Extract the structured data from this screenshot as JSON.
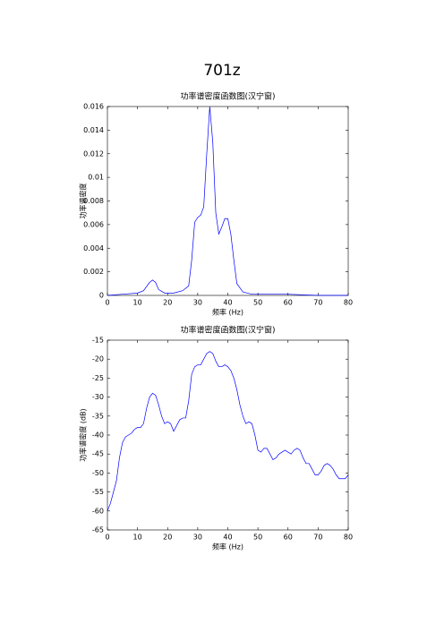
{
  "heading": "701z",
  "chart_data": [
    {
      "type": "line",
      "title": "功率谱密度函数图(汉宁窗)",
      "xlabel": "频率 (Hz)",
      "ylabel": "功率谱密度",
      "xlim": [
        0,
        80
      ],
      "xticks": [
        0,
        10,
        20,
        30,
        40,
        50,
        60,
        70,
        80
      ],
      "ylim": [
        0,
        0.016
      ],
      "yticks": [
        0,
        0.002,
        0.004,
        0.006,
        0.008,
        0.01,
        0.012,
        0.014,
        0.016
      ],
      "x": [
        0,
        5,
        10,
        12,
        14,
        15,
        16,
        17,
        19,
        22,
        25,
        27,
        28,
        29,
        30,
        31,
        32,
        33,
        34,
        35,
        36,
        37,
        38,
        39,
        40,
        41,
        42,
        43,
        45,
        48,
        50,
        55,
        60,
        70,
        80
      ],
      "series": [
        {
          "color": "#0000ff",
          "values": [
            0,
            0.0001,
            0.0002,
            0.0004,
            0.0011,
            0.0013,
            0.0011,
            0.0005,
            0.0002,
            0.0002,
            0.0004,
            0.0008,
            0.003,
            0.0062,
            0.0066,
            0.0068,
            0.0075,
            0.012,
            0.016,
            0.013,
            0.007,
            0.0052,
            0.0058,
            0.0065,
            0.0065,
            0.0052,
            0.003,
            0.001,
            0.0003,
            0.0001,
            0.0001,
            0.0001,
            0.0001,
            0,
            0
          ]
        }
      ]
    },
    {
      "type": "line",
      "title": "功率谱密度函数图(汉宁窗)",
      "xlabel": "频率 (Hz)",
      "ylabel": "功率谱密度 (dB)",
      "xlim": [
        0,
        80
      ],
      "xticks": [
        0,
        10,
        20,
        30,
        40,
        50,
        60,
        70,
        80
      ],
      "ylim": [
        -65,
        -15
      ],
      "yticks": [
        -65,
        -60,
        -55,
        -50,
        -45,
        -40,
        -35,
        -30,
        -25,
        -20,
        -15
      ],
      "x": [
        0,
        1,
        2,
        3,
        4,
        5,
        6,
        7,
        8,
        9,
        10,
        11,
        12,
        13,
        14,
        15,
        16,
        17,
        18,
        19,
        20,
        21,
        22,
        23,
        24,
        25,
        26,
        27,
        28,
        29,
        30,
        31,
        32,
        33,
        34,
        35,
        36,
        37,
        38,
        39,
        40,
        41,
        42,
        43,
        44,
        45,
        46,
        47,
        48,
        49,
        50,
        51,
        52,
        53,
        54,
        55,
        56,
        57,
        58,
        59,
        60,
        61,
        62,
        63,
        64,
        65,
        66,
        67,
        68,
        69,
        70,
        71,
        72,
        73,
        74,
        75,
        76,
        77,
        78,
        79,
        80
      ],
      "series": [
        {
          "color": "#0000ff",
          "values": [
            -60,
            -58,
            -55,
            -52,
            -46,
            -42,
            -40.5,
            -40,
            -39.5,
            -38.5,
            -38,
            -38,
            -37,
            -33,
            -30,
            -29,
            -29.5,
            -32,
            -35,
            -37,
            -36.5,
            -37,
            -39,
            -37.5,
            -36,
            -35.5,
            -35.5,
            -31,
            -24,
            -22,
            -21.5,
            -21.5,
            -20,
            -18.5,
            -18,
            -18.5,
            -20.5,
            -22,
            -22,
            -21.5,
            -22,
            -23,
            -25,
            -28,
            -32,
            -35,
            -37,
            -36.5,
            -37,
            -40,
            -44,
            -44.5,
            -43.5,
            -43.5,
            -45,
            -46.5,
            -46,
            -45,
            -44.5,
            -44,
            -44.5,
            -45,
            -44,
            -43.5,
            -44,
            -46,
            -47.5,
            -47.5,
            -49,
            -50.5,
            -50.5,
            -49.5,
            -48,
            -47.5,
            -48,
            -49,
            -50.5,
            -51.5,
            -51.5,
            -51.5,
            -50.5
          ]
        }
      ]
    }
  ]
}
